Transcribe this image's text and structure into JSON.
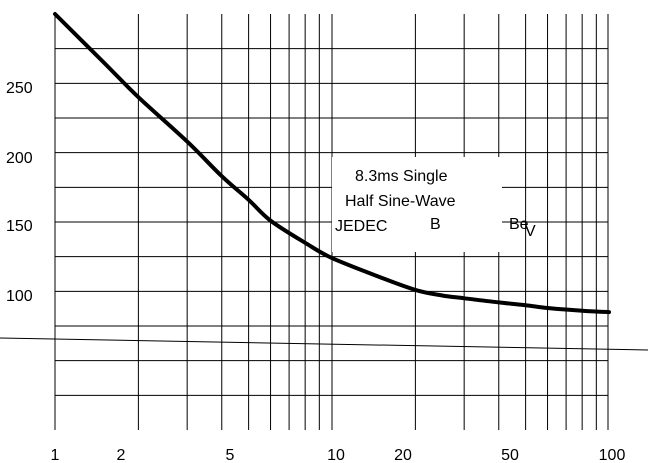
{
  "chart_data": {
    "type": "line",
    "title": "",
    "xlabel": "",
    "ylabel": "",
    "x_scale": "log",
    "xlim": [
      1,
      100
    ],
    "ylim": [
      0,
      300
    ],
    "grid": true,
    "x_tick_labels": [
      "1",
      "2",
      "5",
      "10",
      "20",
      "50",
      "100"
    ],
    "x_ticks": [
      1,
      2,
      5,
      10,
      20,
      50,
      100
    ],
    "y_tick_labels": [
      "100",
      "150",
      "200",
      "250"
    ],
    "y_ticks": [
      100,
      150,
      200,
      250
    ],
    "series": [
      {
        "x": [
          1,
          1.5,
          2,
          3,
          4,
          5,
          6,
          8,
          10,
          15,
          20,
          25,
          30,
          40,
          50,
          60,
          80,
          100
        ],
        "y": [
          300,
          265,
          240,
          208,
          183,
          166,
          151,
          135,
          124,
          110,
          101,
          97,
          95,
          92,
          90,
          88,
          86,
          85
        ]
      }
    ],
    "annotations": {
      "box_lines": [
        "8.3ms Single",
        "Half Sine-Wave",
        "JEDEC"
      ],
      "label_b": "B",
      "label_be": "Be",
      "label_v": "V"
    },
    "colors": {
      "curve": "#000000",
      "grid": "#000000",
      "background": "#ffffff"
    }
  }
}
